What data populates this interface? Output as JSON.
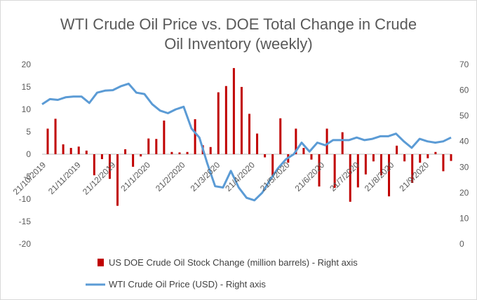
{
  "chart_data": {
    "type": "bar+line",
    "title_line1": "WTI Crude Oil Price vs. DOE Total Change in Crude",
    "title_line2": "Oil Inventory (weekly)",
    "left_axis": {
      "min": -20,
      "max": 20,
      "ticks": [
        20,
        15,
        10,
        5,
        0,
        -5,
        -10,
        -15,
        -20
      ]
    },
    "right_axis": {
      "min": 0,
      "max": 70,
      "ticks": [
        70,
        60,
        50,
        40,
        30,
        20,
        10,
        0
      ]
    },
    "x_tick_labels": [
      "21/10/2019",
      "21/11/2019",
      "21/12/2019",
      "21/1/2020",
      "21/2/2020",
      "21/3/2020",
      "21/4/2020",
      "21/5/2020",
      "21/6/2020",
      "21/7/2020",
      "21/8/2020",
      "21/9/2020"
    ],
    "series": [
      {
        "name": "US DOE Crude Oil Stock Change (million barrels) - Right axis",
        "kind": "bar",
        "color": "#c00000",
        "values": [
          5.7,
          7.9,
          2.2,
          1.4,
          1.7,
          0.8,
          -4.7,
          -1.1,
          -5.5,
          -11.5,
          1.1,
          -2.8,
          -0.5,
          3.5,
          3.4,
          7.5,
          0.5,
          0.4,
          0.5,
          7.8,
          2.0,
          1.6,
          13.8,
          15.2,
          19.2,
          15.0,
          9.0,
          4.6,
          -0.7,
          -5.0,
          8.0,
          -1.9,
          5.7,
          1.4,
          -1.2,
          -7.2,
          5.7,
          -7.5,
          4.9,
          -10.6,
          -7.4,
          -4.5,
          -1.6,
          -4.7,
          -9.4,
          1.9,
          -1.6,
          -6.4,
          -1.9,
          -0.9,
          0.5,
          -3.8,
          -1.5
        ]
      },
      {
        "name": "WTI Crude Oil Price (USD) - Right axis",
        "kind": "line",
        "color": "#5b9bd5",
        "values": [
          54.5,
          56.5,
          56.2,
          57.2,
          57.5,
          57.5,
          55.0,
          59.0,
          59.8,
          60.0,
          61.5,
          62.5,
          59.0,
          58.5,
          54.5,
          52.0,
          51.0,
          52.5,
          53.5,
          45.0,
          41.5,
          31.5,
          22.5,
          22.0,
          28.5,
          22.0,
          18.0,
          17.0,
          20.0,
          25.0,
          29.5,
          33.0,
          35.0,
          39.5,
          36.0,
          39.5,
          38.5,
          40.5,
          40.5,
          40.5,
          41.5,
          40.5,
          41.0,
          42.0,
          42.0,
          43.0,
          40.0,
          37.5,
          41.0,
          40.0,
          39.5,
          40.0,
          41.5
        ]
      }
    ],
    "legend_position": "bottom"
  }
}
